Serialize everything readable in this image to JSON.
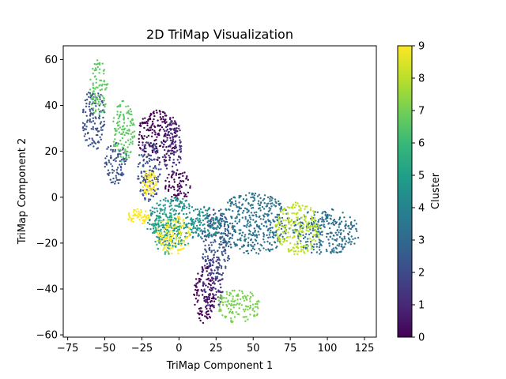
{
  "chart_data": {
    "type": "scatter",
    "title": "2D TriMap Visualization",
    "xlabel": "TriMap Component 1",
    "ylabel": "TriMap Component 2",
    "xlim": [
      -78,
      133
    ],
    "ylim": [
      -61,
      66
    ],
    "xticks": [
      -75,
      -50,
      -25,
      0,
      25,
      50,
      75,
      100,
      125
    ],
    "yticks": [
      -60,
      -40,
      -20,
      0,
      20,
      40,
      60
    ],
    "xtick_labels": [
      "−75",
      "−50",
      "−25",
      "0",
      "25",
      "50",
      "75",
      "100",
      "125"
    ],
    "ytick_labels": [
      "−60",
      "−40",
      "−20",
      "0",
      "20",
      "40",
      "60"
    ],
    "grid": false,
    "colormap": "viridis",
    "colorbar": {
      "label": "Cluster",
      "range": [
        0,
        9
      ],
      "ticks": [
        "0",
        "1",
        "2",
        "3",
        "4",
        "5",
        "6",
        "7",
        "8",
        "9"
      ]
    },
    "clusters": [
      {
        "cluster": 0,
        "color": "#440154",
        "regions": [
          {
            "x": [
              -28,
              0
            ],
            "y": [
              15,
              38
            ]
          },
          {
            "x": [
              -10,
              8
            ],
            "y": [
              -2,
              12
            ]
          },
          {
            "x": [
              10,
              25
            ],
            "y": [
              -55,
              -30
            ]
          }
        ]
      },
      {
        "cluster": 1,
        "color": "#472d7b",
        "regions": [
          {
            "x": [
              -12,
              2
            ],
            "y": [
              10,
              35
            ]
          },
          {
            "x": [
              15,
              30
            ],
            "y": [
              -50,
              -25
            ]
          }
        ]
      },
      {
        "cluster": 2,
        "color": "#3b528b",
        "regions": [
          {
            "x": [
              -65,
              -50
            ],
            "y": [
              20,
              48
            ]
          },
          {
            "x": [
              -50,
              -35
            ],
            "y": [
              5,
              25
            ]
          },
          {
            "x": [
              -28,
              -12
            ],
            "y": [
              -2,
              25
            ]
          },
          {
            "x": [
              15,
              35
            ],
            "y": [
              -35,
              -5
            ]
          }
        ]
      },
      {
        "cluster": 3,
        "color": "#2c728e",
        "regions": [
          {
            "x": [
              25,
              75
            ],
            "y": [
              -25,
              2
            ]
          },
          {
            "x": [
              75,
              122
            ],
            "y": [
              -25,
              -5
            ]
          }
        ]
      },
      {
        "cluster": 4,
        "color": "#21918c",
        "regions": [
          {
            "x": [
              -22,
              15
            ],
            "y": [
              -22,
              0
            ]
          },
          {
            "x": [
              8,
              28
            ],
            "y": [
              -18,
              -4
            ]
          }
        ]
      },
      {
        "cluster": 5,
        "color": "#28ae80",
        "regions": [
          {
            "x": [
              -18,
              2
            ],
            "y": [
              -25,
              -5
            ]
          }
        ]
      },
      {
        "cluster": 6,
        "color": "#5ec962",
        "regions": [
          {
            "x": [
              -60,
              -48
            ],
            "y": [
              35,
              60
            ]
          },
          {
            "x": [
              -45,
              -30
            ],
            "y": [
              15,
              42
            ]
          }
        ]
      },
      {
        "cluster": 7,
        "color": "#7ad151",
        "regions": [
          {
            "x": [
              25,
              55
            ],
            "y": [
              -55,
              -40
            ]
          }
        ]
      },
      {
        "cluster": 8,
        "color": "#bddf26",
        "regions": [
          {
            "x": [
              65,
              95
            ],
            "y": [
              -25,
              -2
            ]
          }
        ]
      },
      {
        "cluster": 9,
        "color": "#fde725",
        "regions": [
          {
            "x": [
              -15,
              8
            ],
            "y": [
              -25,
              -8
            ]
          },
          {
            "x": [
              -35,
              -20
            ],
            "y": [
              -12,
              -5
            ]
          },
          {
            "x": [
              -25,
              -15
            ],
            "y": [
              0,
              12
            ]
          }
        ]
      }
    ]
  }
}
